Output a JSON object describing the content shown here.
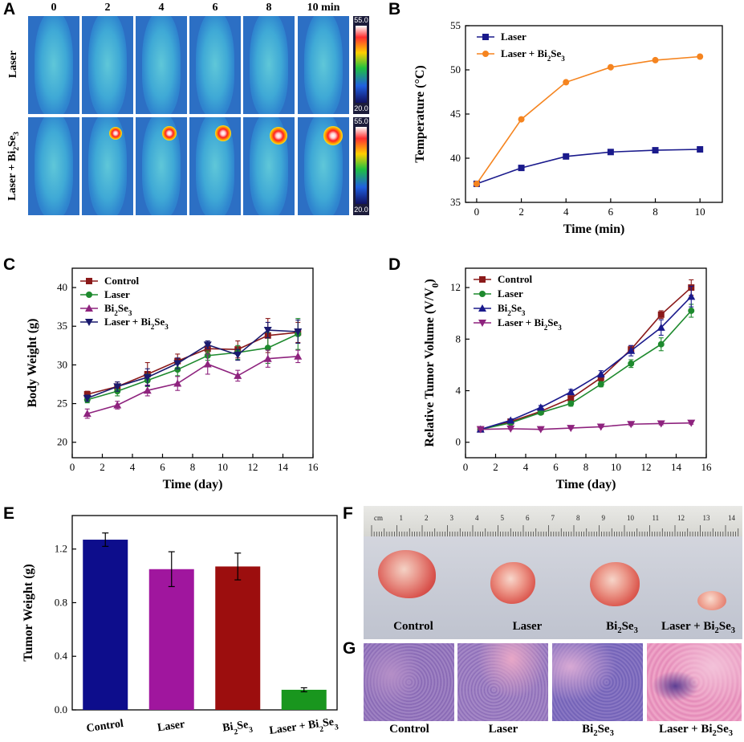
{
  "panels": {
    "A": {
      "label": "A",
      "time_labels": [
        "0",
        "2",
        "4",
        "6",
        "8",
        "10 min"
      ],
      "row_labels": [
        "Laser",
        "Laser + Bi2Se3"
      ],
      "colorbar_max": "55.0",
      "colorbar_min": "20.0"
    },
    "B": {
      "label": "B"
    },
    "C": {
      "label": "C"
    },
    "D": {
      "label": "D"
    },
    "E": {
      "label": "E"
    },
    "F": {
      "label": "F",
      "ruler_ticks": [
        "cm",
        "1",
        "2",
        "3",
        "4",
        "5",
        "6",
        "7",
        "8",
        "9",
        "10",
        "11",
        "12",
        "13",
        "14"
      ],
      "captions": [
        "Control",
        "Laser",
        "Bi2Se3",
        "Laser + Bi2Se3"
      ]
    },
    "G": {
      "label": "G",
      "captions": [
        "Control",
        "Laser",
        "Bi2Se3",
        "Laser + Bi2Se3"
      ]
    }
  },
  "chart_data": [
    {
      "id": "B",
      "type": "line",
      "x": [
        0,
        2,
        4,
        6,
        8,
        10
      ],
      "series": [
        {
          "name": "Laser",
          "values": [
            37.1,
            38.9,
            40.2,
            40.7,
            40.9,
            41.0
          ],
          "color": "#1a1a8c"
        },
        {
          "name": "Laser + Bi2Se3",
          "values": [
            37.1,
            44.4,
            48.6,
            50.3,
            51.1,
            51.5
          ],
          "color": "#f5841f"
        }
      ],
      "xlabel": "Time (min)",
      "ylabel": "Temperature (°C)",
      "xlim": [
        -0.5,
        11
      ],
      "ylim": [
        35,
        55
      ],
      "xticks": [
        0,
        2,
        4,
        6,
        8,
        10
      ],
      "yticks": [
        35,
        40,
        45,
        50,
        55
      ],
      "legend": "top-left"
    },
    {
      "id": "C",
      "type": "line",
      "x": [
        1,
        3,
        5,
        7,
        9,
        11,
        13,
        15
      ],
      "series": [
        {
          "name": "Control",
          "values": [
            26.2,
            27.2,
            28.8,
            30.5,
            32.1,
            32.0,
            33.8,
            34.2
          ],
          "err": [
            0.4,
            0.6,
            1.5,
            0.9,
            0.5,
            1.1,
            2.2,
            1.3
          ],
          "color": "#8b1a1a",
          "marker": "square"
        },
        {
          "name": "Laser",
          "values": [
            25.5,
            26.6,
            28.0,
            29.4,
            31.2,
            31.6,
            32.2,
            34.0
          ],
          "err": [
            0.4,
            0.6,
            0.8,
            0.8,
            0.6,
            0.9,
            2.0,
            2.0
          ],
          "color": "#1e8a2e",
          "marker": "circle"
        },
        {
          "name": "Bi2Se3",
          "values": [
            23.7,
            24.8,
            26.7,
            27.6,
            30.1,
            28.6,
            30.8,
            31.1
          ],
          "err": [
            0.6,
            0.5,
            0.7,
            0.9,
            1.3,
            0.7,
            1.1,
            0.8
          ],
          "color": "#8e237e",
          "marker": "triangle-up"
        },
        {
          "name": "Laser + Bi2Se3",
          "values": [
            25.7,
            27.2,
            28.4,
            30.2,
            32.6,
            31.3,
            34.5,
            34.3
          ],
          "err": [
            0.4,
            0.6,
            1.1,
            0.7,
            0.5,
            0.7,
            1.0,
            1.5
          ],
          "color": "#1a1a6e",
          "marker": "triangle-down"
        }
      ],
      "xlabel": "Time (day)",
      "ylabel": "Body  Weight (g)",
      "xlim": [
        0,
        16
      ],
      "ylim": [
        18,
        42.5
      ],
      "xticks": [
        0,
        2,
        4,
        6,
        8,
        10,
        12,
        14,
        16
      ],
      "yticks": [
        20,
        25,
        30,
        35,
        40
      ],
      "legend": "top-left"
    },
    {
      "id": "D",
      "type": "line",
      "x": [
        1,
        3,
        5,
        7,
        9,
        11,
        13,
        15
      ],
      "series": [
        {
          "name": "Control",
          "values": [
            1.0,
            1.6,
            2.4,
            3.4,
            5.0,
            7.2,
            9.9,
            12.0
          ],
          "err": [
            0.05,
            0.1,
            0.15,
            0.2,
            0.25,
            0.3,
            0.3,
            0.6
          ],
          "color": "#8b1a1a",
          "marker": "square"
        },
        {
          "name": "Laser",
          "values": [
            1.0,
            1.5,
            2.3,
            3.0,
            4.5,
            6.1,
            7.6,
            10.2
          ],
          "err": [
            0.05,
            0.1,
            0.15,
            0.2,
            0.2,
            0.3,
            0.5,
            0.5
          ],
          "color": "#1e8a2e",
          "marker": "circle"
        },
        {
          "name": "Bi2Se3",
          "values": [
            1.0,
            1.7,
            2.7,
            3.9,
            5.3,
            7.1,
            8.9,
            11.3
          ],
          "err": [
            0.05,
            0.1,
            0.15,
            0.2,
            0.25,
            0.4,
            0.6,
            0.8
          ],
          "color": "#1a1a8c",
          "marker": "triangle-up"
        },
        {
          "name": "Laser + Bi2Se3",
          "values": [
            1.0,
            1.05,
            1.0,
            1.1,
            1.2,
            1.4,
            1.45,
            1.5
          ],
          "err": [
            0.05,
            0.05,
            0.05,
            0.05,
            0.05,
            0.1,
            0.1,
            0.1
          ],
          "color": "#8e237e",
          "marker": "triangle-down"
        }
      ],
      "xlabel": "Time (day)",
      "ylabel": "Relative Tumor Volume (V/V0)",
      "xlim": [
        0,
        16
      ],
      "ylim": [
        -1.2,
        13.5
      ],
      "xticks": [
        0,
        2,
        4,
        6,
        8,
        10,
        12,
        14,
        16
      ],
      "yticks": [
        0,
        4,
        8,
        12
      ],
      "legend": "top-left"
    },
    {
      "id": "E",
      "type": "bar",
      "categories": [
        "Control",
        "Laser",
        "Bi2Se3",
        "Laser + Bi2Se3"
      ],
      "values": [
        1.27,
        1.05,
        1.07,
        0.15
      ],
      "err": [
        0.05,
        0.13,
        0.1,
        0.015
      ],
      "colors": [
        "#0d0d8c",
        "#a0169e",
        "#9c0e0e",
        "#19961e"
      ],
      "xlabel": "",
      "ylabel": "Tumor Weight (g)",
      "ylim": [
        0,
        1.45
      ],
      "yticks": [
        0.0,
        0.4,
        0.8,
        1.2
      ]
    }
  ]
}
